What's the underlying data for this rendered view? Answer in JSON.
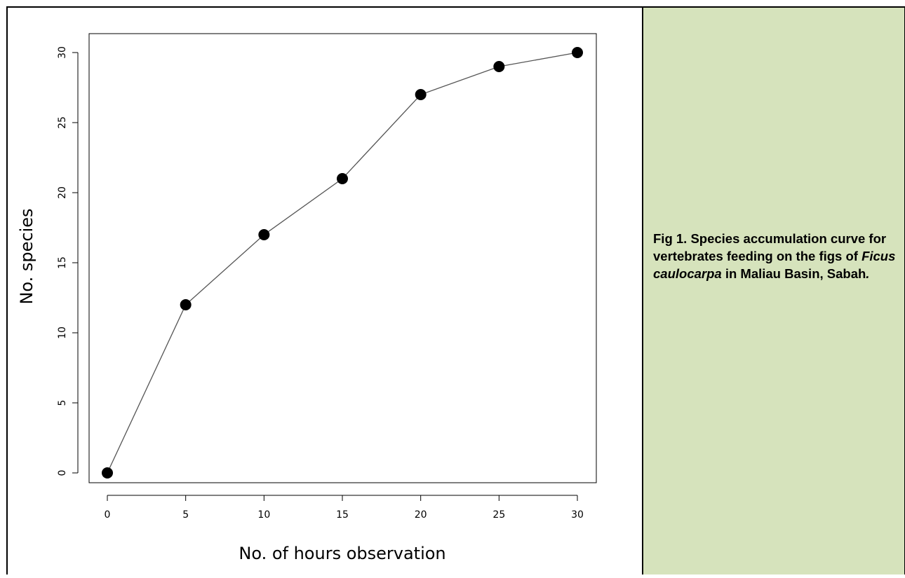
{
  "chart_data": {
    "type": "line",
    "title": "",
    "xlabel": "No. of hours observation",
    "ylabel": "No. species",
    "x": [
      0,
      5,
      10,
      15,
      20,
      25,
      30
    ],
    "series": [
      {
        "values": [
          0,
          12,
          17,
          21,
          27,
          29,
          30
        ]
      }
    ],
    "xlim": [
      0,
      30
    ],
    "ylim": [
      0,
      30
    ],
    "xticks": [
      "0",
      "5",
      "10",
      "15",
      "20",
      "25",
      "30"
    ],
    "yticks": [
      "0",
      "5",
      "10",
      "15",
      "20",
      "25",
      "30"
    ],
    "grid": false,
    "marker": "filled-circle",
    "colors": {
      "line": "#555555",
      "marker": "#000000"
    }
  },
  "caption": {
    "part1": "Fig 1. Species accumulation curve for vertebrates feeding on the figs of ",
    "species": "Ficus caulocarpa",
    "part2": " in Maliau Basin, Sabah",
    "end": "."
  },
  "colors": {
    "caption_background": "#d6e3bc"
  }
}
